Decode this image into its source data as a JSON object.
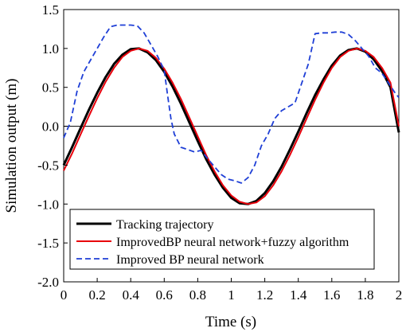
{
  "chart_data": {
    "type": "line",
    "title": "",
    "xlabel": "Time (s)",
    "ylabel": "Simulation output (m)",
    "xlim": [
      0,
      2
    ],
    "ylim": [
      -2.0,
      1.5
    ],
    "xticks": [
      "0",
      "0.2",
      "0.4",
      "0.6",
      "0.8",
      "1",
      "1.2",
      "1.4",
      "1.6",
      "1.8",
      "2"
    ],
    "yticks": [
      "1.5",
      "1.0",
      "0.5",
      "0.0",
      "-0.5",
      "-1.0",
      "-1.5",
      "-2.0"
    ],
    "grid": false,
    "legend_position": "bottom",
    "zero_line": true,
    "series": [
      {
        "name": "Tracking trajectory",
        "color": "#000000",
        "style": "solid",
        "x": [
          0,
          0.05,
          0.1,
          0.15,
          0.2,
          0.25,
          0.3,
          0.35,
          0.4,
          0.45,
          0.5,
          0.55,
          0.6,
          0.65,
          0.7,
          0.75,
          0.8,
          0.85,
          0.9,
          0.95,
          1.0,
          1.05,
          1.1,
          1.15,
          1.2,
          1.25,
          1.3,
          1.35,
          1.4,
          1.45,
          1.5,
          1.55,
          1.6,
          1.65,
          1.7,
          1.75,
          1.8,
          1.85,
          1.9,
          1.95,
          2.0
        ],
        "y": [
          -0.5,
          -0.27,
          -0.03,
          0.21,
          0.43,
          0.63,
          0.8,
          0.92,
          0.99,
          1.0,
          0.95,
          0.85,
          0.7,
          0.51,
          0.29,
          0.05,
          -0.19,
          -0.42,
          -0.62,
          -0.79,
          -0.92,
          -0.99,
          -1.0,
          -0.96,
          -0.86,
          -0.71,
          -0.52,
          -0.3,
          -0.07,
          0.17,
          0.4,
          0.6,
          0.78,
          0.91,
          0.98,
          1.0,
          0.96,
          0.86,
          0.71,
          0.5,
          -0.08
        ]
      },
      {
        "name": "ImprovedBP neural network+fuzzy algorithm",
        "color": "#e8000b",
        "style": "solid",
        "x": [
          0,
          0.05,
          0.1,
          0.15,
          0.2,
          0.25,
          0.3,
          0.35,
          0.4,
          0.45,
          0.5,
          0.55,
          0.6,
          0.65,
          0.7,
          0.75,
          0.8,
          0.85,
          0.9,
          0.95,
          1.0,
          1.05,
          1.1,
          1.15,
          1.2,
          1.25,
          1.3,
          1.35,
          1.4,
          1.45,
          1.5,
          1.55,
          1.6,
          1.65,
          1.7,
          1.75,
          1.8,
          1.85,
          1.9,
          1.95,
          2.0
        ],
        "y": [
          -0.57,
          -0.35,
          -0.11,
          0.13,
          0.36,
          0.57,
          0.75,
          0.89,
          0.97,
          1.0,
          0.97,
          0.88,
          0.74,
          0.56,
          0.35,
          0.11,
          -0.13,
          -0.37,
          -0.58,
          -0.76,
          -0.89,
          -0.97,
          -1.0,
          -0.98,
          -0.9,
          -0.76,
          -0.58,
          -0.37,
          -0.14,
          0.1,
          0.34,
          0.56,
          0.75,
          0.89,
          0.97,
          1.0,
          0.97,
          0.89,
          0.75,
          0.56,
          0.0
        ]
      },
      {
        "name": "Improved BP neural network",
        "color": "#1f3fd6",
        "style": "dashed",
        "x": [
          0,
          0.04,
          0.08,
          0.12,
          0.16,
          0.2,
          0.24,
          0.28,
          0.32,
          0.36,
          0.4,
          0.44,
          0.48,
          0.52,
          0.56,
          0.6,
          0.62,
          0.64,
          0.66,
          0.7,
          0.74,
          0.78,
          0.82,
          0.86,
          0.9,
          0.94,
          0.98,
          1.02,
          1.06,
          1.1,
          1.14,
          1.18,
          1.22,
          1.26,
          1.3,
          1.34,
          1.38,
          1.42,
          1.46,
          1.5,
          1.54,
          1.58,
          1.62,
          1.66,
          1.7,
          1.74,
          1.78,
          1.82,
          1.86,
          1.9,
          1.94,
          1.98,
          2.0
        ],
        "y": [
          -0.15,
          0.05,
          0.45,
          0.7,
          0.85,
          1.0,
          1.15,
          1.28,
          1.3,
          1.3,
          1.3,
          1.29,
          1.2,
          1.05,
          0.9,
          0.72,
          0.4,
          0.1,
          -0.1,
          -0.27,
          -0.3,
          -0.33,
          -0.31,
          -0.42,
          -0.52,
          -0.62,
          -0.68,
          -0.7,
          -0.73,
          -0.66,
          -0.5,
          -0.25,
          -0.1,
          0.1,
          0.2,
          0.25,
          0.3,
          0.55,
          0.8,
          1.19,
          1.2,
          1.2,
          1.21,
          1.21,
          1.18,
          1.1,
          1.0,
          0.9,
          0.75,
          0.68,
          0.55,
          0.42,
          0.37
        ]
      }
    ]
  }
}
